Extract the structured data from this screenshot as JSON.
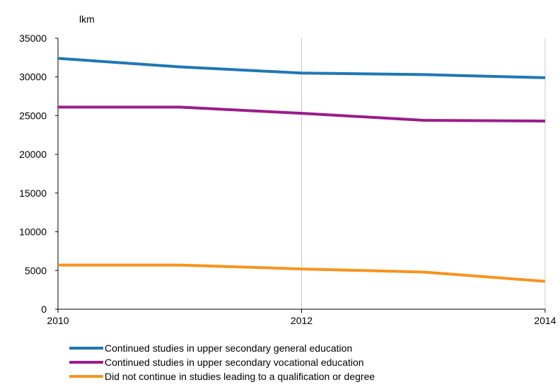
{
  "chart_data": {
    "type": "line",
    "unit_label": "lkm",
    "x": [
      2010,
      2011,
      2012,
      2013,
      2014
    ],
    "x_tick_labels": [
      "2010",
      "2012",
      "2014"
    ],
    "x_tick_values": [
      2010,
      2012,
      2014
    ],
    "xlim": [
      2010,
      2014
    ],
    "ylim": [
      0,
      35000
    ],
    "y_ticks": [
      0,
      5000,
      10000,
      15000,
      20000,
      25000,
      30000,
      35000
    ],
    "y_tick_labels": [
      "0",
      "5000",
      "10000",
      "15000",
      "20000",
      "25000",
      "30000",
      "35000"
    ],
    "grid": "vertical at 2012",
    "legend_placement": "bottom",
    "series": [
      {
        "name": "Continued studies in upper secondary general education",
        "color": "#1f77b4",
        "values": [
          32400,
          31300,
          30500,
          30300,
          29900
        ]
      },
      {
        "name": "Continued studies in upper secondary vocational education",
        "color": "#9b1c8c",
        "values": [
          26100,
          26100,
          25300,
          24400,
          24300
        ]
      },
      {
        "name": "Did not continue in studies leading to a qualification or degree",
        "color": "#f7941d",
        "values": [
          5700,
          5700,
          5200,
          4800,
          3600
        ]
      }
    ]
  }
}
